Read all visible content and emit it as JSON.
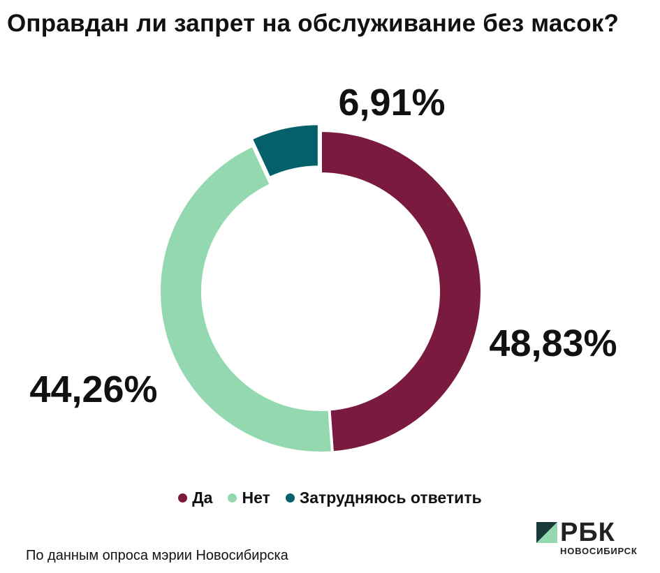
{
  "chart_data": {
    "type": "pie",
    "title": "Оправдан ли запрет на обслуживание без масок?",
    "categories": [
      "Да",
      "Нет",
      "Затрудняюсь ответить"
    ],
    "values": [
      48.83,
      44.26,
      6.91
    ],
    "labels": [
      "48,83%",
      "44,26%",
      "6,91%"
    ],
    "colors": [
      "#7a1a3e",
      "#94d8b0",
      "#04606a"
    ],
    "legend_position": "bottom"
  },
  "source": "По данным опроса мэрии Новосибирска",
  "logo": {
    "name": "РБК",
    "city": "НОВОСИБИРСК"
  }
}
